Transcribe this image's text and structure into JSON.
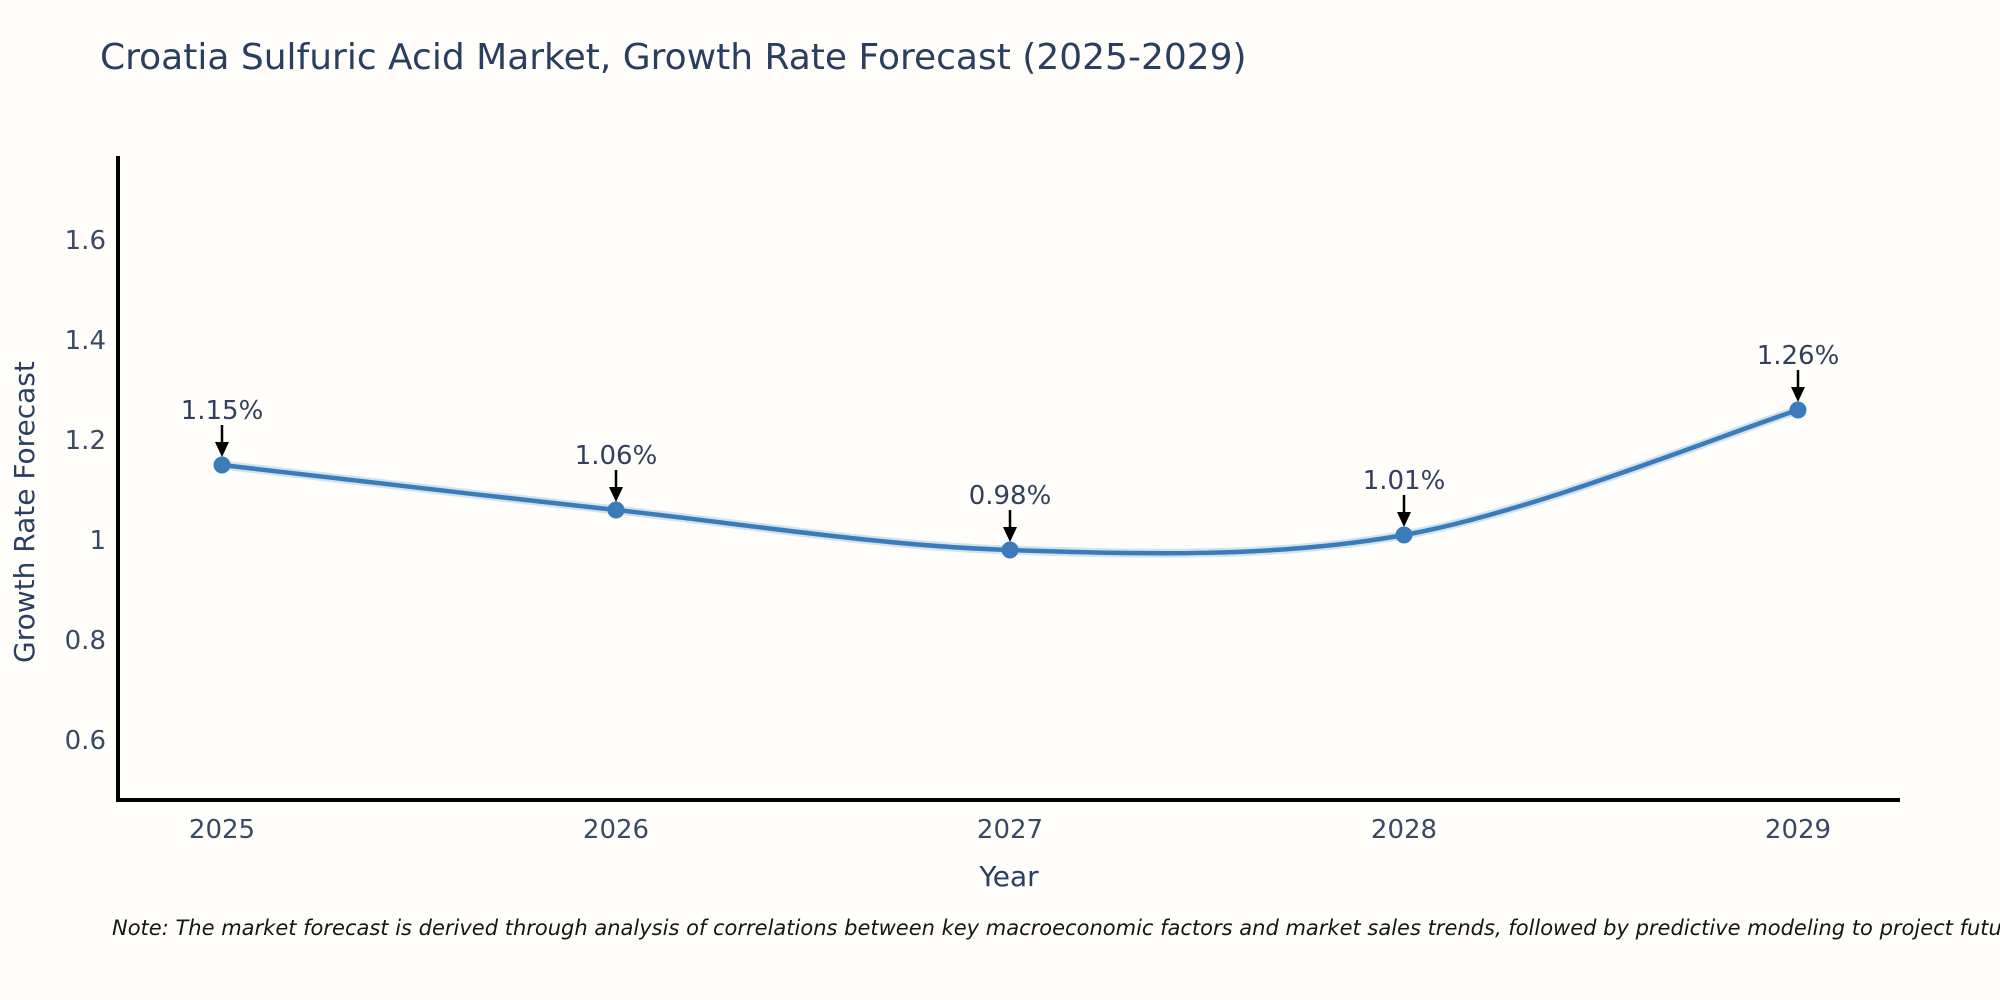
{
  "chart_data": {
    "type": "line",
    "title": "Croatia Sulfuric Acid Market, Growth Rate Forecast (2025-2029)",
    "xlabel": "Year",
    "ylabel": "Growth Rate Forecast",
    "x": [
      2025,
      2026,
      2027,
      2028,
      2029
    ],
    "series": [
      {
        "name": "Growth Rate Forecast",
        "values": [
          1.15,
          1.06,
          0.98,
          1.01,
          1.26
        ]
      }
    ],
    "point_labels": [
      "1.15%",
      "1.06%",
      "0.98%",
      "1.01%",
      "1.26%"
    ],
    "yticks": [
      {
        "value": 0.6,
        "label": "0.6"
      },
      {
        "value": 0.8,
        "label": "0.8"
      },
      {
        "value": 1.0,
        "label": "1"
      },
      {
        "value": 1.2,
        "label": "1.2"
      },
      {
        "value": 1.4,
        "label": "1.4"
      },
      {
        "value": 1.6,
        "label": "1.6"
      }
    ],
    "ylim": [
      0.48,
      1.76
    ],
    "line_shape": "spline",
    "grid": false,
    "legend_position": "none",
    "colors": {
      "line": "#3a7bb8",
      "line_halo": "#aecbe6",
      "marker": "#3a7bb8",
      "axis": "#000000",
      "title_text": "#2a3f5f",
      "tick_text": "#3b4a63",
      "annotation_text": "#32405c",
      "arrow": "#000000"
    }
  },
  "note": {
    "text": "Note: The market forecast is derived through analysis of correlations between key macroeconomic factors and market sales trends, followed by predictive modeling to project future sales"
  }
}
